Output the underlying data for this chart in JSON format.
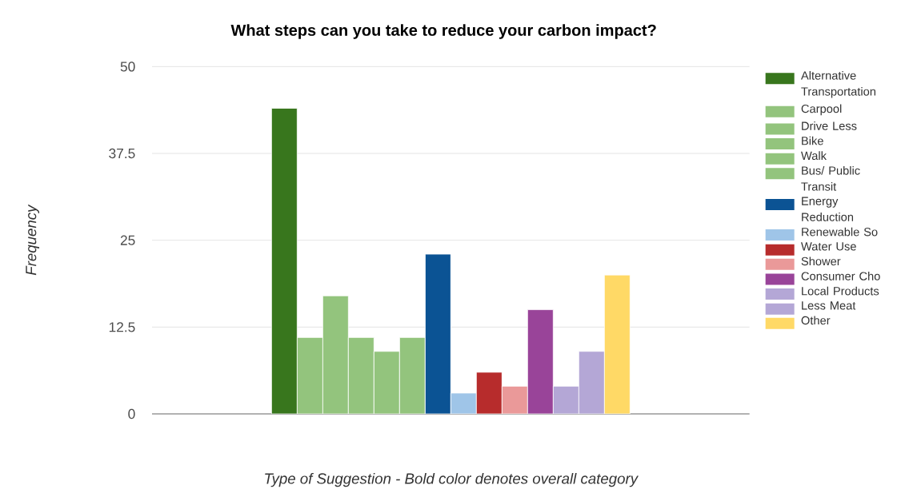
{
  "chart_data": {
    "type": "bar",
    "title": "What steps can you take to reduce your carbon impact?",
    "xlabel": "Type of Suggestion - Bold color denotes overall category",
    "ylabel": "Frequency",
    "categories": [
      null
    ],
    "series": [
      {
        "name": "Alternative Transportation",
        "color": "#38761d",
        "values": [
          44
        ]
      },
      {
        "name": "Carpool",
        "color": "#93c47d",
        "values": [
          11
        ]
      },
      {
        "name": "Drive Less",
        "color": "#93c47d",
        "values": [
          17
        ]
      },
      {
        "name": "Bike",
        "color": "#93c47d",
        "values": [
          11
        ]
      },
      {
        "name": "Walk",
        "color": "#93c47d",
        "values": [
          9
        ]
      },
      {
        "name": "Bus/ Public Transit",
        "color": "#93c47d",
        "values": [
          11
        ]
      },
      {
        "name": "Energy Reduction",
        "color": "#0b5394",
        "values": [
          23
        ]
      },
      {
        "name": "Renewable So",
        "color": "#9fc5e8",
        "values": [
          3
        ]
      },
      {
        "name": "Water Use",
        "color": "#b72c2c",
        "values": [
          6
        ]
      },
      {
        "name": "Shower",
        "color": "#ea9999",
        "values": [
          4
        ]
      },
      {
        "name": "Consumer Cho",
        "color": "#994499",
        "values": [
          15
        ]
      },
      {
        "name": "Local Products",
        "color": "#b4a7d6",
        "values": [
          4
        ]
      },
      {
        "name": "Less Meat",
        "color": "#b4a7d6",
        "values": [
          9
        ]
      },
      {
        "name": "Other",
        "color": "#ffd966",
        "values": [
          20
        ]
      }
    ],
    "ylim": [
      0,
      50
    ],
    "yticks": [
      0,
      12.5,
      25,
      37.5,
      50
    ],
    "grid": "y",
    "legend": "right",
    "tick_labels": "y"
  }
}
